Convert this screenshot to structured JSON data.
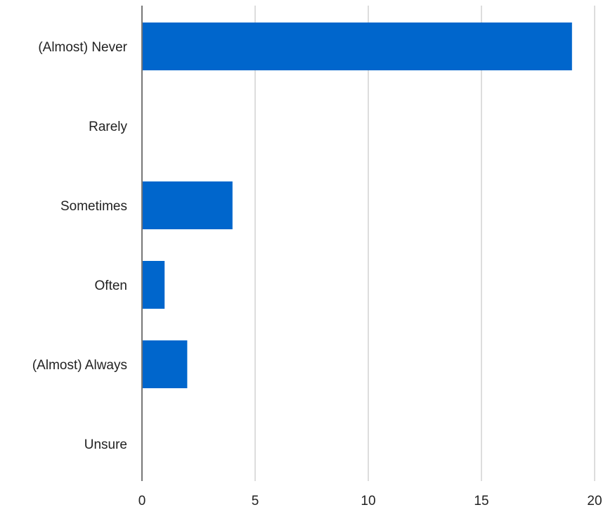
{
  "chart_data": {
    "type": "bar",
    "orientation": "horizontal",
    "title": "",
    "xlabel": "",
    "ylabel": "",
    "categories": [
      "(Almost) Never",
      "Rarely",
      "Sometimes",
      "Often",
      "(Almost) Always",
      "Unsure"
    ],
    "values": [
      19,
      0,
      4,
      1,
      2,
      0
    ],
    "xlim": [
      0,
      20
    ],
    "xticks": [
      "0",
      "5",
      "10",
      "15",
      "20"
    ],
    "grid": true,
    "legend": "none",
    "bar_color": "#0066cc",
    "grid_color": "#dddddd",
    "axis_color": "#777777"
  }
}
